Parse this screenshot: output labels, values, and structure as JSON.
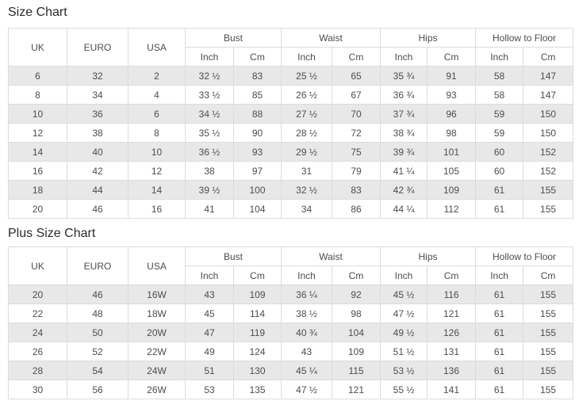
{
  "colors": {
    "stripe_gray": "#e8e8e8",
    "border_gray": "#dcdcdc",
    "text_gray": "#4d4d4d",
    "title_dark": "#2b2b2b"
  },
  "tables": [
    {
      "title": "Size Chart",
      "header": {
        "uk": "UK",
        "euro": "EURO",
        "usa": "USA",
        "groups": [
          "Bust",
          "Waist",
          "Hips",
          "Hollow to Floor"
        ],
        "sub": [
          "Inch",
          "Cm"
        ]
      },
      "rows": [
        [
          "6",
          "32",
          "2",
          "32 ½",
          "83",
          "25 ½",
          "65",
          "35 ¾",
          "91",
          "58",
          "147"
        ],
        [
          "8",
          "34",
          "4",
          "33 ½",
          "85",
          "26 ½",
          "67",
          "36 ¾",
          "93",
          "58",
          "147"
        ],
        [
          "10",
          "36",
          "6",
          "34 ½",
          "88",
          "27 ½",
          "70",
          "37 ¾",
          "96",
          "59",
          "150"
        ],
        [
          "12",
          "38",
          "8",
          "35 ½",
          "90",
          "28 ½",
          "72",
          "38 ¾",
          "98",
          "59",
          "150"
        ],
        [
          "14",
          "40",
          "10",
          "36 ½",
          "93",
          "29 ½",
          "75",
          "39 ¾",
          "101",
          "60",
          "152"
        ],
        [
          "16",
          "42",
          "12",
          "38",
          "97",
          "31",
          "79",
          "41 ¼",
          "105",
          "60",
          "152"
        ],
        [
          "18",
          "44",
          "14",
          "39 ½",
          "100",
          "32 ½",
          "83",
          "42 ¾",
          "109",
          "61",
          "155"
        ],
        [
          "20",
          "46",
          "16",
          "41",
          "104",
          "34",
          "86",
          "44 ¼",
          "112",
          "61",
          "155"
        ]
      ]
    },
    {
      "title": "Plus Size Chart",
      "header": {
        "uk": "UK",
        "euro": "EURO",
        "usa": "USA",
        "groups": [
          "Bust",
          "Waist",
          "Hips",
          "Hollow to Floor"
        ],
        "sub": [
          "Inch",
          "Cm"
        ]
      },
      "rows": [
        [
          "20",
          "46",
          "16W",
          "43",
          "109",
          "36 ¼",
          "92",
          "45 ½",
          "116",
          "61",
          "155"
        ],
        [
          "22",
          "48",
          "18W",
          "45",
          "114",
          "38 ½",
          "98",
          "47 ½",
          "121",
          "61",
          "155"
        ],
        [
          "24",
          "50",
          "20W",
          "47",
          "119",
          "40 ¾",
          "104",
          "49 ½",
          "126",
          "61",
          "155"
        ],
        [
          "26",
          "52",
          "22W",
          "49",
          "124",
          "43",
          "109",
          "51 ½",
          "131",
          "61",
          "155"
        ],
        [
          "28",
          "54",
          "24W",
          "51",
          "130",
          "45 ¼",
          "115",
          "53 ½",
          "136",
          "61",
          "155"
        ],
        [
          "30",
          "56",
          "26W",
          "53",
          "135",
          "47 ½",
          "121",
          "55 ½",
          "141",
          "61",
          "155"
        ]
      ]
    }
  ]
}
